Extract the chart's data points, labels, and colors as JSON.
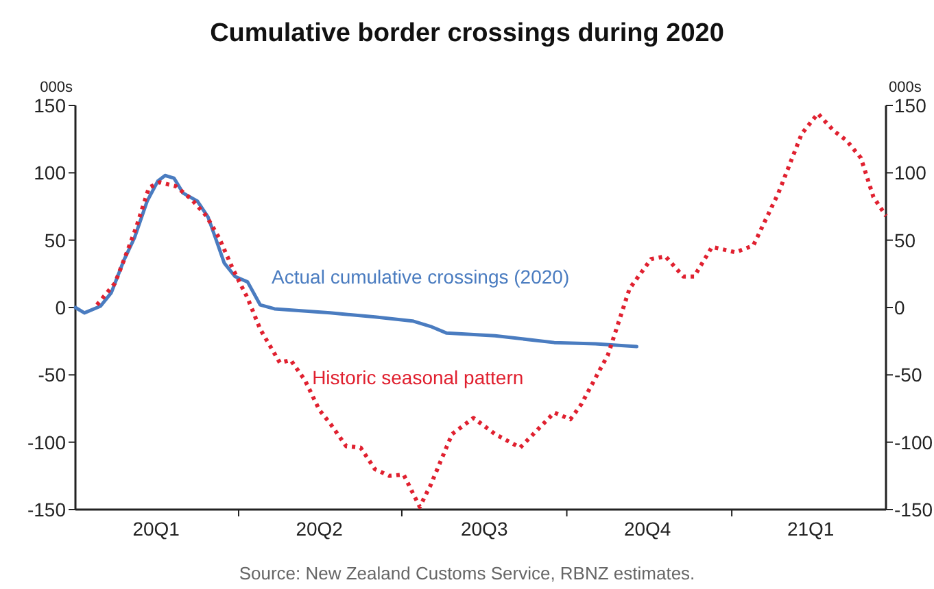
{
  "chart_data": {
    "type": "line",
    "title": "Cumulative border crossings during 2020",
    "ylabel": "000s",
    "y2label": "000s",
    "annotations": [
      "Source: New Zealand Customs Service, RBNZ estimates."
    ],
    "xlim": [
      "2020-01-01",
      "2021-03-28"
    ],
    "xticks": [
      {
        "value": "2020-02-15",
        "label": "20Q1"
      },
      {
        "value": "2020-04-01",
        "label": null
      },
      {
        "value": "2020-05-16",
        "label": "20Q2"
      },
      {
        "value": "2020-07-01",
        "label": null
      },
      {
        "value": "2020-08-16",
        "label": "20Q3"
      },
      {
        "value": "2020-10-01",
        "label": null
      },
      {
        "value": "2020-11-15",
        "label": "20Q4"
      },
      {
        "value": "2021-01-01",
        "label": null
      },
      {
        "value": "2021-02-14",
        "label": "21Q1"
      }
    ],
    "ylim": [
      -150,
      150
    ],
    "yticks": [
      -150,
      -100,
      -50,
      0,
      50,
      100,
      150
    ],
    "y2lim": [
      -150,
      150
    ],
    "y2ticks": [
      -150,
      -100,
      -50,
      0,
      50,
      100,
      150
    ],
    "series": [
      {
        "name": "Actual cumulative crossings (2020)",
        "color": "#4a7cc0",
        "line_style": "solid",
        "x": [
          "2020-01-01",
          "2020-01-06",
          "2020-01-15",
          "2020-01-21",
          "2020-01-28",
          "2020-02-03",
          "2020-02-10",
          "2020-02-16",
          "2020-02-20",
          "2020-02-25",
          "2020-03-01",
          "2020-03-09",
          "2020-03-15",
          "2020-03-19",
          "2020-03-24",
          "2020-03-30",
          "2020-04-06",
          "2020-04-13",
          "2020-04-21",
          "2020-05-22",
          "2020-06-16",
          "2020-07-07",
          "2020-07-17",
          "2020-07-26",
          "2020-08-22",
          "2020-09-24",
          "2020-10-17",
          "2020-11-09"
        ],
        "values": [
          0,
          -4,
          1,
          11,
          35,
          52,
          79,
          94,
          98,
          96,
          85,
          79,
          67,
          52,
          33,
          23,
          19,
          2,
          -1,
          -4,
          -7,
          -10,
          -14,
          -19,
          -21,
          -26,
          -27,
          -29
        ]
      },
      {
        "name": "Historic seasonal pattern",
        "color": "#e0202f",
        "line_style": "dotted",
        "x": [
          "2020-01-13",
          "2020-01-23",
          "2020-01-28",
          "2020-02-04",
          "2020-02-11",
          "2020-02-17",
          "2020-02-26",
          "2020-03-06",
          "2020-03-14",
          "2020-03-21",
          "2020-03-29",
          "2020-04-06",
          "2020-04-13",
          "2020-04-24",
          "2020-04-30",
          "2020-05-08",
          "2020-05-16",
          "2020-05-22",
          "2020-05-31",
          "2020-06-08",
          "2020-06-16",
          "2020-06-24",
          "2020-07-02",
          "2020-07-11",
          "2020-07-17",
          "2020-07-29",
          "2020-08-10",
          "2020-08-22",
          "2020-09-05",
          "2020-09-24",
          "2020-10-03",
          "2020-10-09",
          "2020-10-24",
          "2020-11-05",
          "2020-11-17",
          "2020-11-25",
          "2020-12-05",
          "2020-12-11",
          "2020-12-21",
          "2021-01-03",
          "2021-01-13",
          "2021-01-27",
          "2021-02-09",
          "2021-02-18",
          "2021-02-27",
          "2021-03-06",
          "2021-03-14",
          "2021-03-21",
          "2021-03-28"
        ],
        "values": [
          2,
          18,
          35,
          60,
          89,
          93,
          90,
          80,
          68,
          52,
          28,
          7,
          -16,
          -41,
          -39,
          -54,
          -76,
          -86,
          -103,
          -104,
          -120,
          -125,
          -124,
          -148,
          -132,
          -94,
          -82,
          -94,
          -104,
          -78,
          -83,
          -72,
          -35,
          14,
          36,
          38,
          23,
          23,
          45,
          41,
          46,
          85,
          129,
          144,
          131,
          124,
          111,
          82,
          68
        ]
      }
    ]
  }
}
